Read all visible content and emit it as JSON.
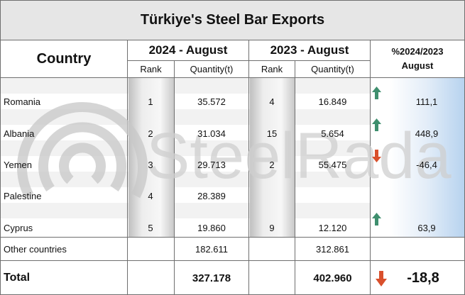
{
  "title": "Türkiye's Steel Bar Exports",
  "headers": {
    "country": "Country",
    "period1": "2024 - August",
    "period2": "2023 - August",
    "pct_line1": "%2024/2023",
    "pct_line2": "August",
    "rank": "Rank",
    "quantity": "Quantity(t)"
  },
  "rows": [
    {
      "country": "Romania",
      "rank_2024": "1",
      "qty_2024": "35.572",
      "rank_2023": "4",
      "qty_2023": "16.849",
      "change": "111,1",
      "direction": "up"
    },
    {
      "country": "Albania",
      "rank_2024": "2",
      "qty_2024": "31.034",
      "rank_2023": "15",
      "qty_2023": "5.654",
      "change": "448,9",
      "direction": "up"
    },
    {
      "country": "Yemen",
      "rank_2024": "3",
      "qty_2024": "29.713",
      "rank_2023": "2",
      "qty_2023": "55.475",
      "change": "-46,4",
      "direction": "down"
    },
    {
      "country": "Palestine",
      "rank_2024": "4",
      "qty_2024": "28.389",
      "rank_2023": "",
      "qty_2023": "",
      "change": "",
      "direction": ""
    },
    {
      "country": "Cyprus",
      "rank_2024": "5",
      "qty_2024": "19.860",
      "rank_2023": "9",
      "qty_2023": "12.120",
      "change": "63,9",
      "direction": "up"
    }
  ],
  "other": {
    "label": "Other countries",
    "qty_2024": "182.611",
    "qty_2023": "312.861"
  },
  "total": {
    "label": "Total",
    "qty_2024": "327.178",
    "qty_2023": "402.960",
    "change": "-18,8",
    "direction": "down"
  },
  "watermark": "SteelRadar",
  "colors": {
    "up": "#3f8f6e",
    "down": "#d9502c",
    "header_bg": "#e6e6e6",
    "pct_gradient": "#b7d3ef"
  }
}
